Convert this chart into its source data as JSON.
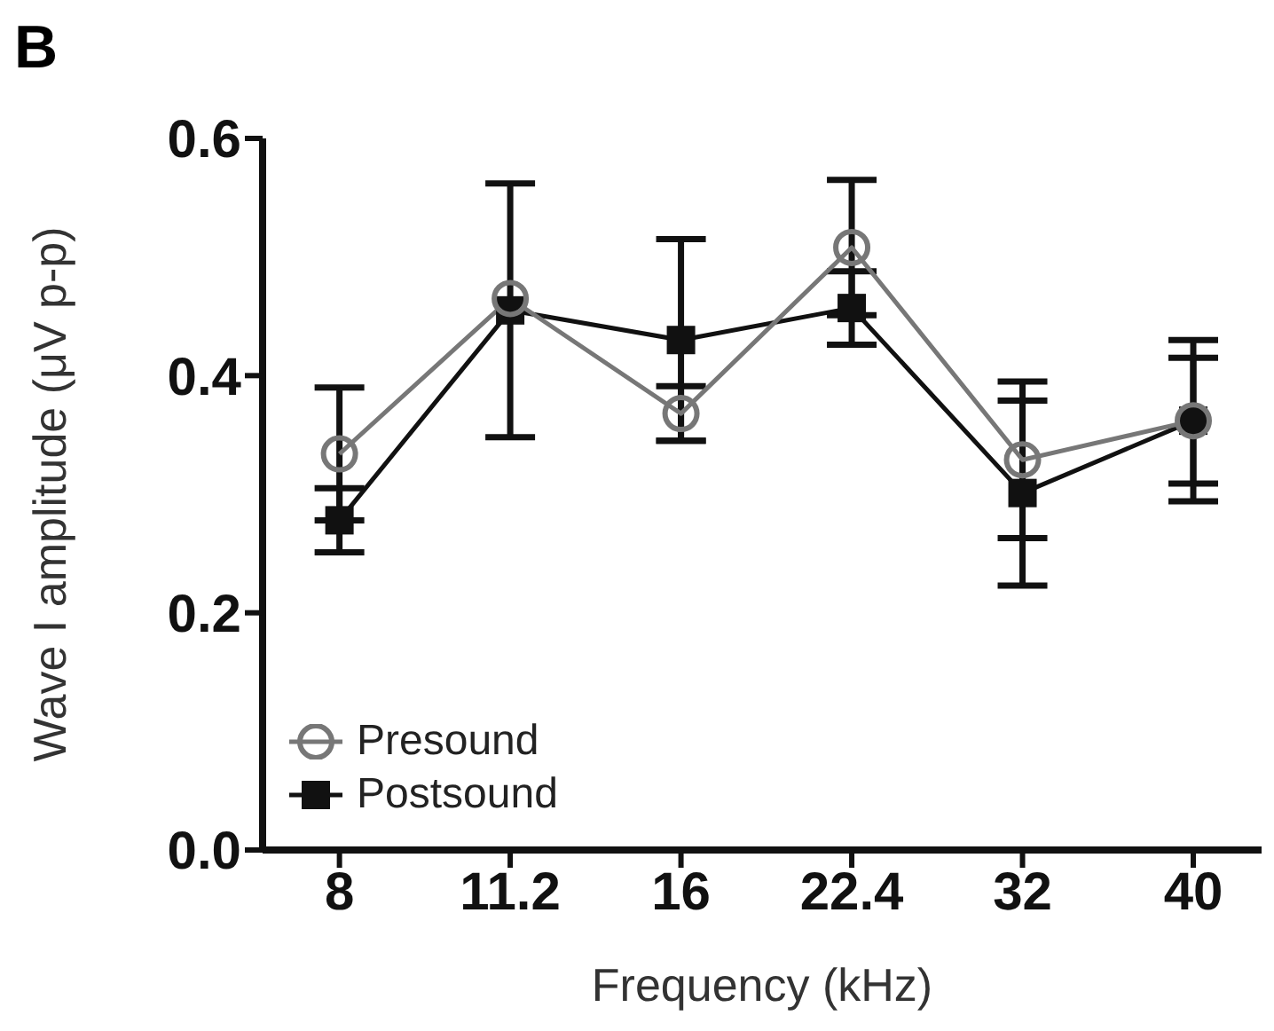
{
  "chart_data": {
    "type": "line",
    "title": "B",
    "xlabel": "Frequency (kHz)",
    "ylabel": "Wave I amplitude (μV p-p)",
    "categories": [
      "8",
      "11.2",
      "16",
      "22.4",
      "32",
      "40"
    ],
    "series": [
      {
        "name": "Presound",
        "color": "#777777",
        "marker": "circle",
        "values": [
          0.334,
          0.465,
          0.368,
          0.508,
          0.329,
          0.362
        ],
        "errors": [
          0.056,
          null,
          0.023,
          0.057,
          0.066,
          0.068
        ]
      },
      {
        "name": "Postsound",
        "color": "#111111",
        "marker": "square",
        "values": [
          0.278,
          0.455,
          0.43,
          0.457,
          0.301,
          0.362
        ],
        "errors": [
          0.027,
          0.107,
          0.085,
          0.031,
          0.078,
          0.053
        ]
      }
    ],
    "ylim": [
      0,
      0.6
    ],
    "yticks": [
      {
        "value": 0,
        "label": "0.0"
      },
      0.2,
      0.4,
      0.6
    ],
    "grid": false,
    "legend": "bottom left"
  }
}
